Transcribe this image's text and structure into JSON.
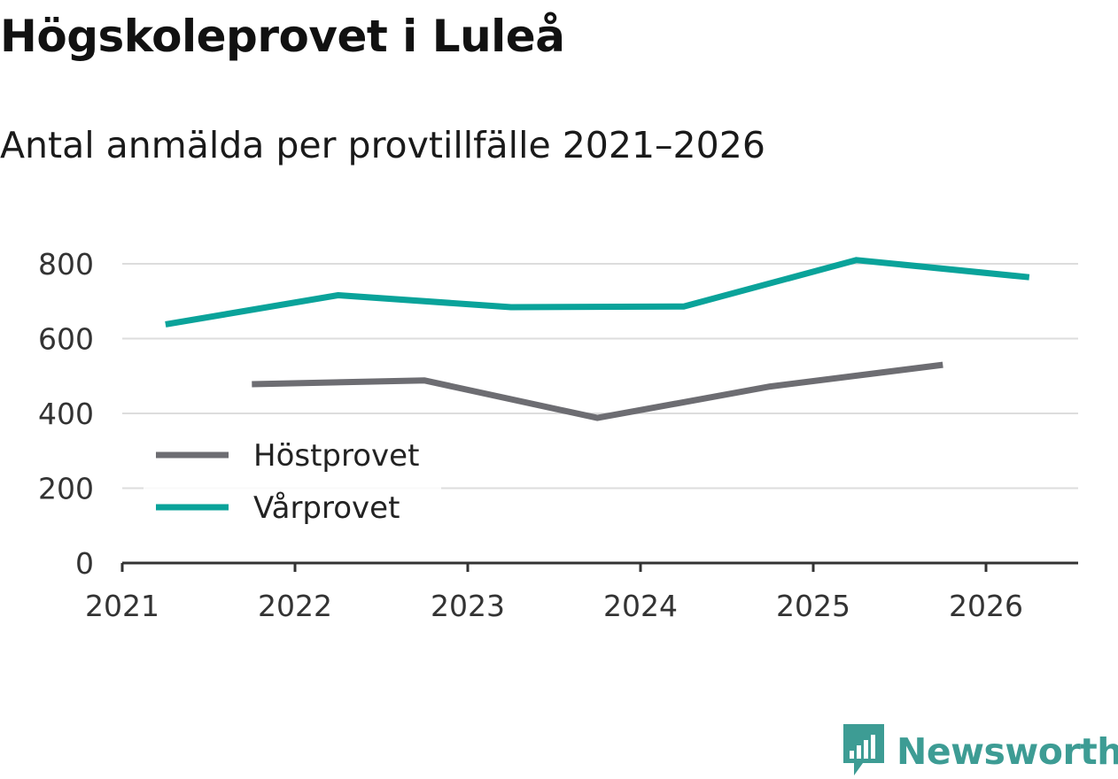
{
  "title": "Högskoleprovet i Luleå",
  "subtitle": "Antal anmälda per provtillfälle 2021–2026",
  "brand": {
    "name": "Newsworthy",
    "icon": "newsworthy-logo-icon",
    "color": "#3d9c94"
  },
  "chart_data": {
    "type": "line",
    "title": "Högskoleprovet i Luleå",
    "subtitle": "Antal anmälda per provtillfälle 2021–2026",
    "xlabel": "",
    "ylabel": "",
    "xlim": [
      2021,
      2026.55
    ],
    "ylim": [
      0,
      800
    ],
    "x_ticks": [
      "2021",
      "2022",
      "2023",
      "2024",
      "2025",
      "2026"
    ],
    "y_ticks": [
      0,
      200,
      400,
      600,
      800
    ],
    "grid": true,
    "legend_position": "lower-left",
    "series": [
      {
        "name": "Höstprovet",
        "color": "#6d6d72",
        "x": [
          2021.75,
          2022.75,
          2023.75,
          2024.75,
          2025.75
        ],
        "values": [
          478,
          488,
          388,
          472,
          530
        ]
      },
      {
        "name": "Vårprovet",
        "color": "#0aa39a",
        "x": [
          2021.25,
          2022.25,
          2023.25,
          2024.25,
          2025.25,
          2026.25
        ],
        "values": [
          638,
          716,
          684,
          686,
          810,
          764
        ]
      }
    ]
  }
}
